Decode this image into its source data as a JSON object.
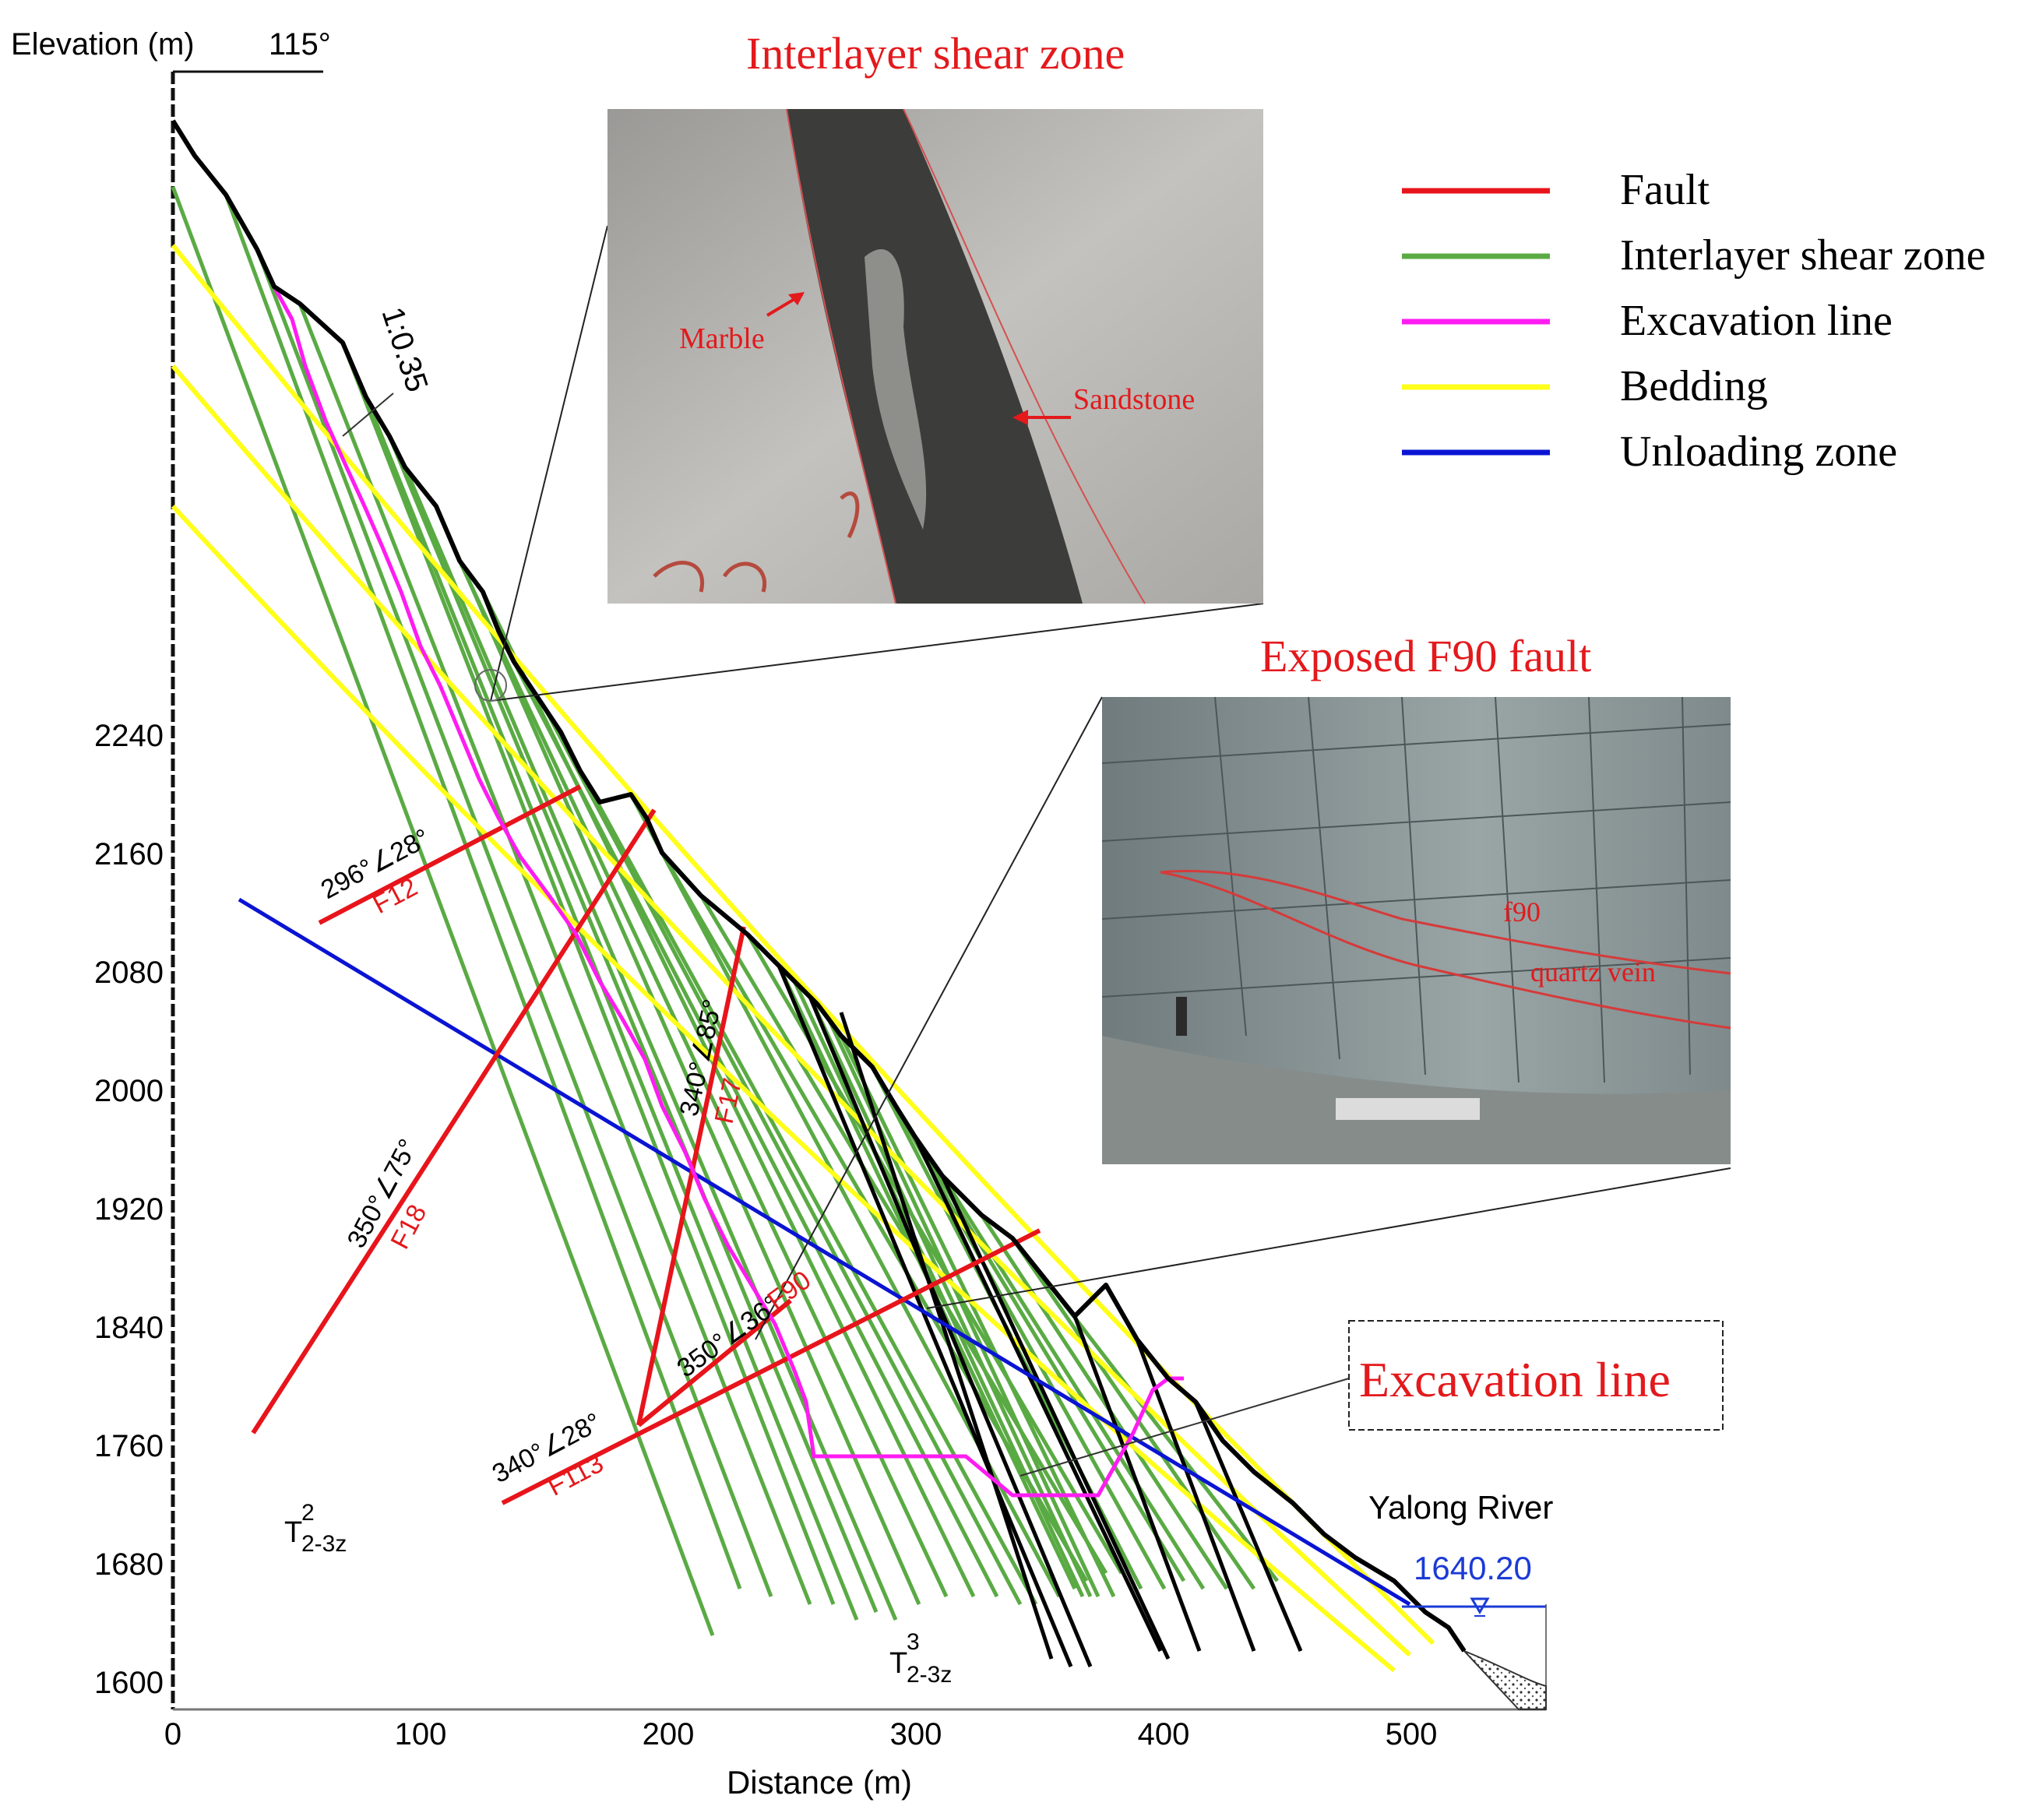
{
  "axes": {
    "y_title": "Elevation (m)",
    "azimuth": "115°",
    "x_title": "Distance (m)",
    "y_ticks": [
      "2240",
      "2160",
      "2080",
      "2000",
      "1920",
      "1840",
      "1760",
      "1680",
      "1600"
    ],
    "x_ticks": [
      "0",
      "100",
      "200",
      "300",
      "400",
      "500"
    ],
    "ylim": [
      1600,
      2240
    ],
    "xlim": [
      0,
      550
    ]
  },
  "legend": [
    {
      "label": "Fault",
      "color": "#e8141b"
    },
    {
      "label": "Interlayer shear zone",
      "color": "#5aaa44"
    },
    {
      "label": "Excavation line",
      "color": "#ff1cf2"
    },
    {
      "label": "Bedding",
      "color": "#ffff1a"
    },
    {
      "label": "Unloading zone",
      "color": "#0a14d2"
    }
  ],
  "slope_ratio": "1:0.35",
  "faults": [
    {
      "name": "F12",
      "attitude": "296°∠28°"
    },
    {
      "name": "F18",
      "attitude": "350°∠75°"
    },
    {
      "name": "F17",
      "attitude": "340°∠85°"
    },
    {
      "name": "F90",
      "attitude": "350°∠36°"
    },
    {
      "name": "F113",
      "attitude": "340°∠28°"
    }
  ],
  "strata": {
    "lower": {
      "base": "T",
      "sub": "2-3z",
      "sup": "2"
    },
    "upper": {
      "base": "T",
      "sub": "2-3z",
      "sup": "3"
    }
  },
  "river": {
    "name": "Yalong River",
    "level": "1640.20"
  },
  "photo1": {
    "title": "Interlayer shear zone",
    "labels": [
      "Marble",
      "Sandstone"
    ]
  },
  "photo2": {
    "title": "Exposed F90 fault",
    "labels": [
      "f90",
      "quartz vein"
    ]
  },
  "callout": "Excavation line"
}
